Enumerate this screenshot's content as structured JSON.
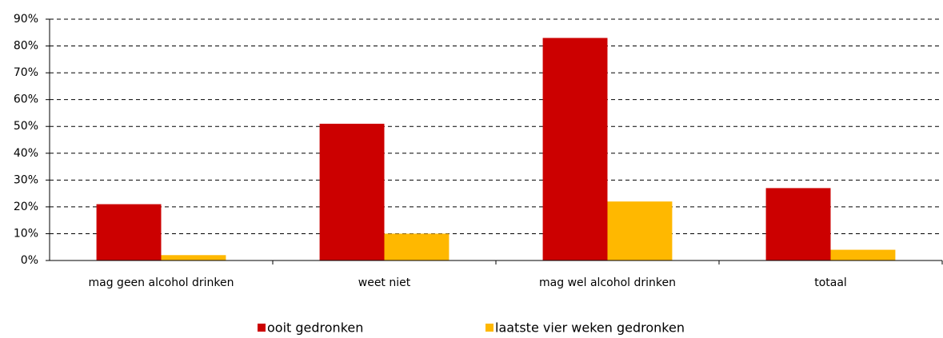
{
  "chart_data": {
    "type": "bar",
    "categories": [
      "mag geen alcohol drinken",
      "weet niet",
      "mag wel alcohol drinken",
      "totaal"
    ],
    "series": [
      {
        "name": "ooit gedronken",
        "color": "#cc0000",
        "values": [
          21,
          51,
          83,
          27
        ]
      },
      {
        "name": "laatste vier weken gedronken",
        "color": "#ffb800",
        "values": [
          2,
          10,
          22,
          4
        ]
      }
    ],
    "ylim": [
      0,
      90
    ],
    "yticks": [
      {
        "value": 0,
        "label": "0%"
      },
      {
        "value": 10,
        "label": "10%"
      },
      {
        "value": 20,
        "label": "20%"
      },
      {
        "value": 30,
        "label": "30%"
      },
      {
        "value": 40,
        "label": "40%"
      },
      {
        "value": 50,
        "label": "50%"
      },
      {
        "value": 60,
        "label": "60%"
      },
      {
        "value": 70,
        "label": "70%"
      },
      {
        "value": 80,
        "label": "80%"
      },
      {
        "value": 90,
        "label": "90%"
      }
    ],
    "grid": true
  }
}
